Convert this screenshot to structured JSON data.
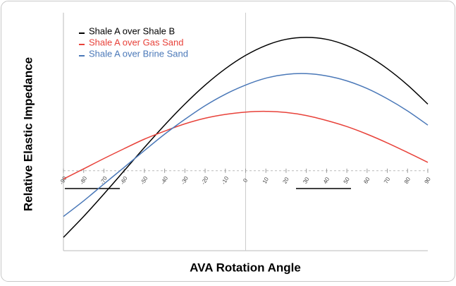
{
  "chart_data": {
    "type": "line",
    "x_label": "AVA Rotation Angle",
    "y_label": "Relative Elastic Impedance",
    "x": [
      -90,
      -80,
      -70,
      -60,
      -50,
      -40,
      -30,
      -20,
      -10,
      0,
      10,
      20,
      30,
      40,
      50,
      60,
      70,
      80,
      90
    ],
    "xlim": [
      -90,
      90
    ],
    "xticks": [
      -90,
      -80,
      -70,
      -60,
      -50,
      -40,
      -30,
      -20,
      -10,
      0,
      10,
      20,
      30,
      40,
      50,
      60,
      70,
      80,
      90
    ],
    "ylim": [
      -2.1,
      4.15
    ],
    "yticks": [
      0
    ],
    "legend": "upper left",
    "series": [
      {
        "name": "Shale A over Shale B",
        "color": "#000000",
        "values": [
          -1.75,
          -1.2,
          -0.61,
          0,
          0.61,
          1.2,
          1.75,
          2.25,
          2.68,
          3.03,
          3.29,
          3.45,
          3.5,
          3.45,
          3.29,
          3.03,
          2.68,
          2.25,
          1.75
        ]
      },
      {
        "name": "Shale A over Gas Sand",
        "color": "#e8423a",
        "values": [
          -0.22,
          0.05,
          0.32,
          0.58,
          0.83,
          1.04,
          1.23,
          1.38,
          1.48,
          1.54,
          1.56,
          1.53,
          1.45,
          1.32,
          1.16,
          0.96,
          0.73,
          0.48,
          0.22
        ]
      },
      {
        "name": "Shale A over Brine Sand",
        "color": "#4a78b8",
        "values": [
          -1.2,
          -0.79,
          -0.35,
          0.09,
          0.53,
          0.96,
          1.35,
          1.71,
          2.01,
          2.25,
          2.43,
          2.53,
          2.55,
          2.49,
          2.36,
          2.16,
          1.89,
          1.57,
          1.2
        ]
      }
    ]
  }
}
